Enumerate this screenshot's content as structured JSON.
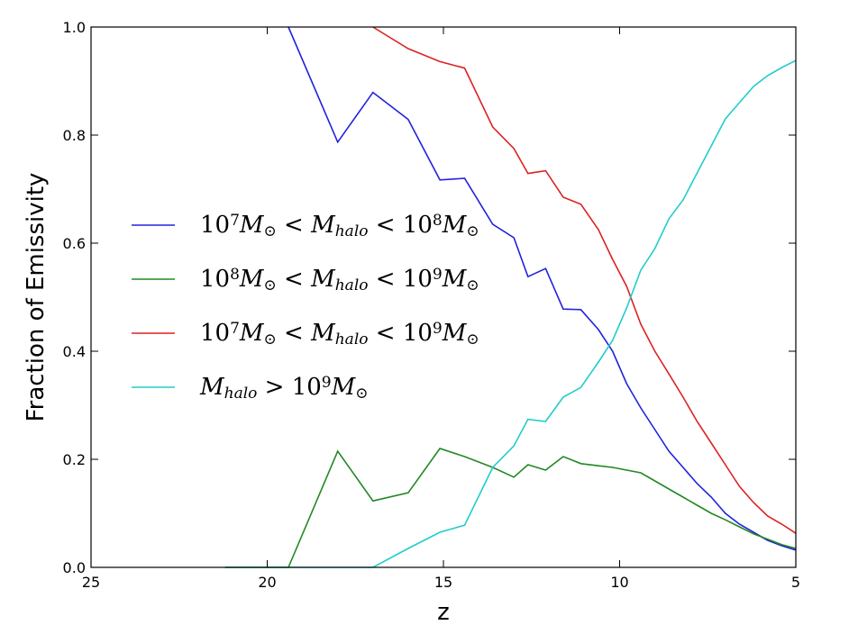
{
  "chart_data": {
    "type": "line",
    "title": "",
    "xlabel": "z",
    "ylabel": "Fraction of Emissivity",
    "xlim": [
      25,
      5
    ],
    "ylim": [
      0.0,
      1.0
    ],
    "x_ticks": [
      "25",
      "20",
      "15",
      "10",
      "5"
    ],
    "y_ticks": [
      "0.0",
      "0.2",
      "0.4",
      "0.6",
      "0.8",
      "1.0"
    ],
    "grid": false,
    "legend_position": "center-left",
    "series": [
      {
        "name": "10⁷M⊙ < Mhalo < 10⁸M⊙",
        "color": "#2222dd",
        "x": [
          19.4,
          18.0,
          17.0,
          16.0,
          15.1,
          14.4,
          13.6,
          13.0,
          12.6,
          12.1,
          11.6,
          11.1,
          10.6,
          10.2,
          9.8,
          9.4,
          9.0,
          8.6,
          8.2,
          7.8,
          7.4,
          7.0,
          6.6,
          6.2,
          5.8,
          5.4,
          5.0
        ],
        "values": [
          1.0,
          0.787,
          0.879,
          0.829,
          0.717,
          0.72,
          0.635,
          0.61,
          0.538,
          0.553,
          0.478,
          0.477,
          0.44,
          0.4,
          0.34,
          0.295,
          0.255,
          0.215,
          0.185,
          0.155,
          0.13,
          0.1,
          0.08,
          0.065,
          0.05,
          0.04,
          0.032
        ]
      },
      {
        "name": "10⁸M⊙ < Mhalo < 10⁹M⊙",
        "color": "#228822",
        "x": [
          21.2,
          19.4,
          18.0,
          17.0,
          16.0,
          15.1,
          14.4,
          13.6,
          13.0,
          12.6,
          12.1,
          11.6,
          11.1,
          10.6,
          10.2,
          9.8,
          9.4,
          9.0,
          8.6,
          8.2,
          7.8,
          7.4,
          7.0,
          6.6,
          6.2,
          5.8,
          5.4,
          5.0
        ],
        "values": [
          0.0,
          0.0,
          0.215,
          0.123,
          0.138,
          0.22,
          0.205,
          0.185,
          0.167,
          0.19,
          0.18,
          0.205,
          0.192,
          0.188,
          0.185,
          0.18,
          0.175,
          0.16,
          0.145,
          0.13,
          0.115,
          0.1,
          0.088,
          0.075,
          0.062,
          0.052,
          0.042,
          0.035
        ]
      },
      {
        "name": "10⁷M⊙ < Mhalo < 10⁹M⊙",
        "color": "#dd2222",
        "x": [
          17.0,
          16.0,
          15.1,
          14.4,
          13.6,
          13.0,
          12.6,
          12.1,
          11.6,
          11.1,
          10.6,
          10.2,
          9.8,
          9.4,
          9.0,
          8.6,
          8.2,
          7.8,
          7.4,
          7.0,
          6.6,
          6.2,
          5.8,
          5.4,
          5.0
        ],
        "values": [
          1.0,
          0.96,
          0.936,
          0.924,
          0.815,
          0.775,
          0.729,
          0.734,
          0.685,
          0.672,
          0.625,
          0.57,
          0.52,
          0.45,
          0.4,
          0.358,
          0.315,
          0.27,
          0.23,
          0.19,
          0.15,
          0.12,
          0.095,
          0.08,
          0.063
        ]
      },
      {
        "name": "Mhalo > 10⁹M⊙",
        "color": "#22cccc",
        "x": [
          21.2,
          19.4,
          18.0,
          17.0,
          16.0,
          15.1,
          14.4,
          13.6,
          13.0,
          12.6,
          12.1,
          11.6,
          11.1,
          10.6,
          10.2,
          9.8,
          9.4,
          9.0,
          8.6,
          8.2,
          7.8,
          7.4,
          7.0,
          6.6,
          6.2,
          5.8,
          5.4,
          5.0
        ],
        "values": [
          0.0,
          0.0,
          0.0,
          0.0,
          0.035,
          0.065,
          0.078,
          0.185,
          0.225,
          0.274,
          0.27,
          0.315,
          0.333,
          0.38,
          0.42,
          0.48,
          0.55,
          0.59,
          0.645,
          0.68,
          0.73,
          0.78,
          0.83,
          0.86,
          0.89,
          0.91,
          0.925,
          0.938
        ]
      }
    ]
  }
}
